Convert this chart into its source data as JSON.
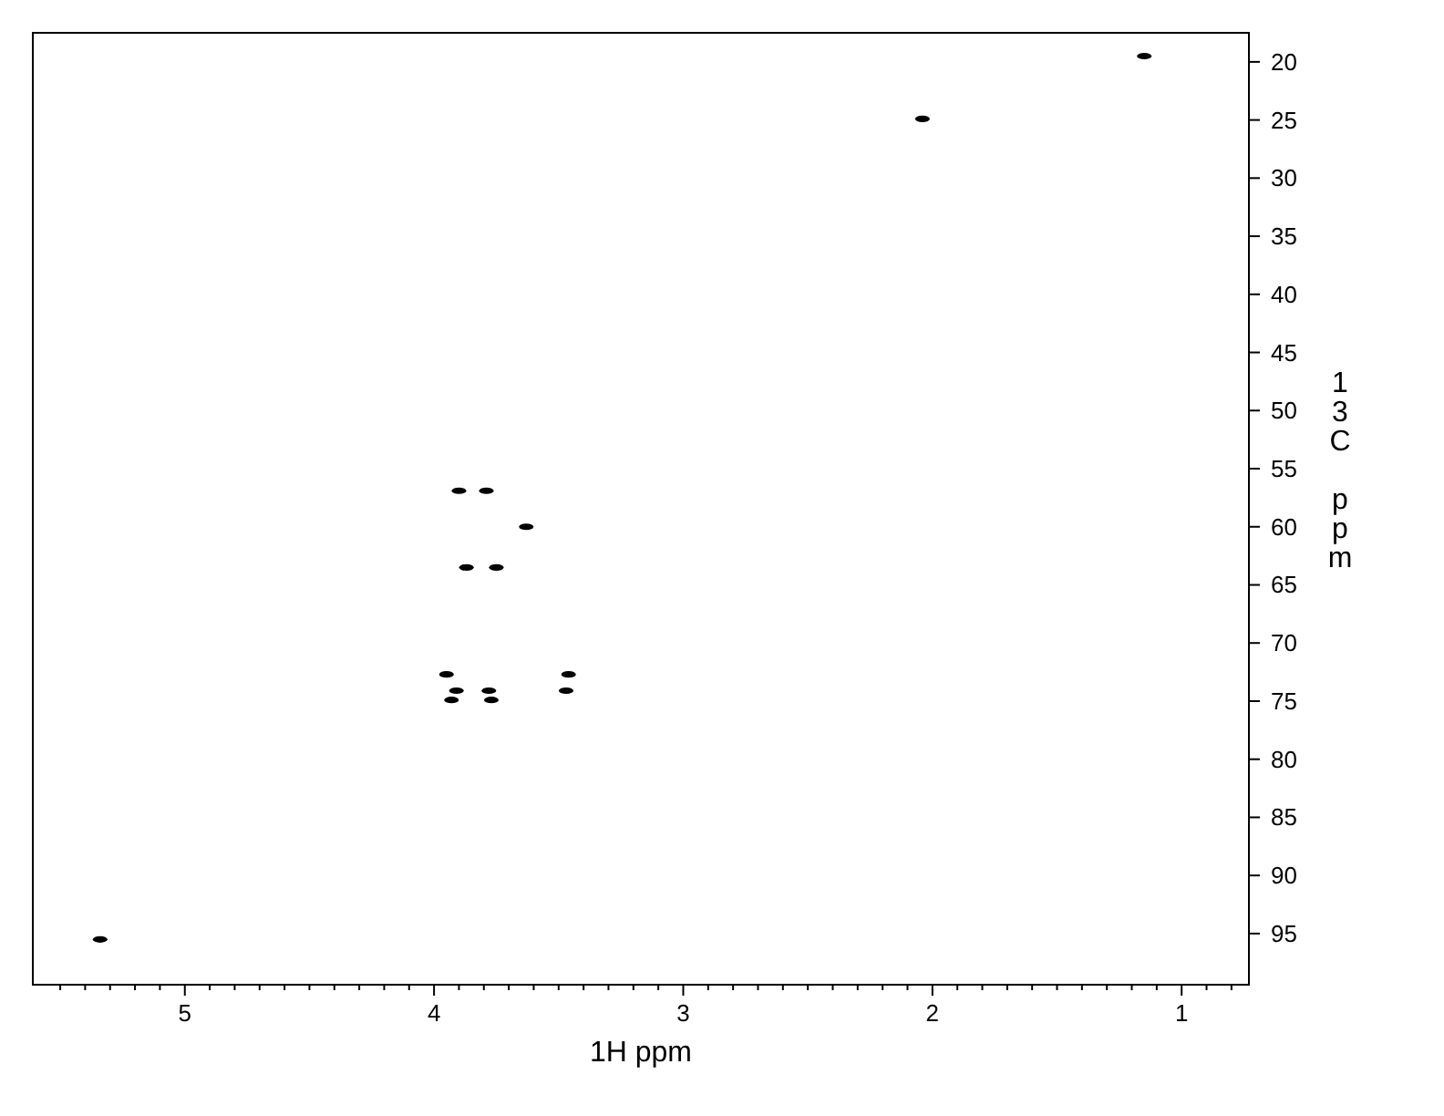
{
  "chart_data": {
    "type": "scatter",
    "xlabel": "1H ppm",
    "ylabel": "13C ppm",
    "color": "#000000",
    "marker": "circle",
    "x": [
      1.15,
      2.04,
      3.9,
      3.79,
      3.63,
      3.87,
      3.75,
      3.95,
      3.46,
      3.93,
      3.91,
      3.78,
      3.77,
      3.47,
      5.34
    ],
    "values": [
      19.5,
      24.9,
      56.9,
      56.9,
      60.0,
      63.5,
      63.5,
      72.7,
      72.7,
      74.9,
      74.1,
      74.1,
      74.9,
      74.1,
      95.5
    ],
    "xlim": [
      5.61,
      0.73
    ],
    "ylim": [
      99.4,
      17.5
    ],
    "xticks": [
      {
        "value": 5.5,
        "label": null
      },
      {
        "value": 5.4,
        "label": null
      },
      {
        "value": 5.3,
        "label": null
      },
      {
        "value": 5.2,
        "label": null
      },
      {
        "value": 5.1,
        "label": null
      },
      5,
      {
        "value": 4.9,
        "label": null
      },
      {
        "value": 4.8,
        "label": null
      },
      {
        "value": 4.7,
        "label": null
      },
      {
        "value": 4.6,
        "label": null
      },
      {
        "value": 4.5,
        "label": null
      },
      {
        "value": 4.4,
        "label": null
      },
      {
        "value": 4.3,
        "label": null
      },
      {
        "value": 4.2,
        "label": null
      },
      {
        "value": 4.1,
        "label": null
      },
      4,
      {
        "value": 3.9,
        "label": null
      },
      {
        "value": 3.8,
        "label": null
      },
      {
        "value": 3.7,
        "label": null
      },
      {
        "value": 3.6,
        "label": null
      },
      {
        "value": 3.5,
        "label": null
      },
      {
        "value": 3.4,
        "label": null
      },
      {
        "value": 3.3,
        "label": null
      },
      {
        "value": 3.2,
        "label": null
      },
      {
        "value": 3.1,
        "label": null
      },
      3,
      {
        "value": 2.9,
        "label": null
      },
      {
        "value": 2.8,
        "label": null
      },
      {
        "value": 2.7,
        "label": null
      },
      {
        "value": 2.6,
        "label": null
      },
      {
        "value": 2.5,
        "label": null
      },
      {
        "value": 2.4,
        "label": null
      },
      {
        "value": 2.3,
        "label": null
      },
      {
        "value": 2.2,
        "label": null
      },
      {
        "value": 2.1,
        "label": null
      },
      2,
      {
        "value": 1.9,
        "label": null
      },
      {
        "value": 1.8,
        "label": null
      },
      {
        "value": 1.7,
        "label": null
      },
      {
        "value": 1.6,
        "label": null
      },
      {
        "value": 1.5,
        "label": null
      },
      {
        "value": 1.4,
        "label": null
      },
      {
        "value": 1.3,
        "label": null
      },
      {
        "value": 1.2,
        "label": null
      },
      {
        "value": 1.1,
        "label": null
      },
      1,
      {
        "value": 0.9,
        "label": null
      },
      {
        "value": 0.8,
        "label": null
      }
    ],
    "yticks": [
      20,
      25,
      30,
      35,
      40,
      45,
      50,
      55,
      60,
      65,
      70,
      75,
      80,
      85,
      90,
      95
    ],
    "grid": false
  }
}
